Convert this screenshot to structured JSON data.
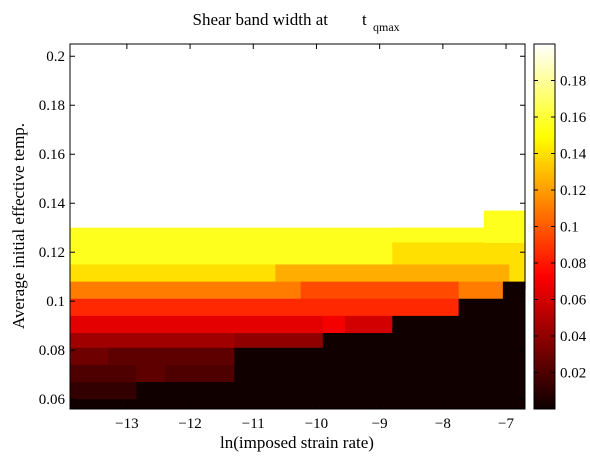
{
  "chart_data": {
    "type": "heatmap",
    "title": "Shear band width at",
    "title_symbol": "t",
    "title_subscript": "qmax",
    "xlabel": "ln(imposed strain rate)",
    "ylabel": "Average initial effective temp.",
    "xlim": [
      -13.9,
      -6.7
    ],
    "ylim": [
      0.056,
      0.205
    ],
    "xticks": [
      -13,
      -12,
      -11,
      -10,
      -9,
      -8,
      -7
    ],
    "xtick_labels": [
      "−13",
      "−12",
      "−11",
      "−10",
      "−9",
      "−8",
      "−7"
    ],
    "yticks": [
      0.06,
      0.08,
      0.1,
      0.12,
      0.14,
      0.16,
      0.18,
      0.2
    ],
    "ytick_labels": [
      "0.06",
      "0.08",
      "0.1",
      "0.12",
      "0.14",
      "0.16",
      "0.18",
      "0.2"
    ],
    "colorbar": {
      "colormap": "hot",
      "range": [
        0.0,
        0.2
      ],
      "ticks": [
        0.02,
        0.04,
        0.06,
        0.08,
        0.1,
        0.12,
        0.14,
        0.16,
        0.18
      ],
      "tick_labels": [
        "0.02",
        "0.04",
        "0.06",
        "0.08",
        "0.1",
        "0.12",
        "0.14",
        "0.16",
        "0.18"
      ]
    },
    "background_value": 0.2,
    "cells": [
      {
        "x0": -13.9,
        "x1": -7.35,
        "y0": 0.121,
        "y1": 0.13,
        "value": 0.155
      },
      {
        "x0": -7.35,
        "x1": -6.7,
        "y0": 0.13,
        "y1": 0.137,
        "value": 0.155
      },
      {
        "x0": -13.9,
        "x1": -8.8,
        "y0": 0.115,
        "y1": 0.121,
        "value": 0.155
      },
      {
        "x0": -8.8,
        "x1": -7.35,
        "y0": 0.121,
        "y1": 0.13,
        "value": 0.155
      },
      {
        "x0": -8.8,
        "x1": -6.7,
        "y0": 0.115,
        "y1": 0.124,
        "value": 0.14
      },
      {
        "x0": -7.35,
        "x1": -6.7,
        "y0": 0.124,
        "y1": 0.13,
        "value": 0.155
      },
      {
        "x0": -13.9,
        "x1": -10.65,
        "y0": 0.108,
        "y1": 0.115,
        "value": 0.14
      },
      {
        "x0": -10.65,
        "x1": -6.95,
        "y0": 0.108,
        "y1": 0.115,
        "value": 0.125
      },
      {
        "x0": -6.95,
        "x1": -6.7,
        "y0": 0.108,
        "y1": 0.115,
        "value": 0.14
      },
      {
        "x0": -13.9,
        "x1": -10.25,
        "y0": 0.101,
        "y1": 0.108,
        "value": 0.11
      },
      {
        "x0": -10.25,
        "x1": -7.75,
        "y0": 0.101,
        "y1": 0.108,
        "value": 0.095
      },
      {
        "x0": -7.75,
        "x1": -7.05,
        "y0": 0.101,
        "y1": 0.108,
        "value": 0.11
      },
      {
        "x0": -7.05,
        "x1": -6.7,
        "y0": 0.105,
        "y1": 0.108,
        "value": 0.002
      },
      {
        "x0": -13.9,
        "x1": -7.75,
        "y0": 0.094,
        "y1": 0.101,
        "value": 0.085
      },
      {
        "x0": -13.9,
        "x1": -9.9,
        "y0": 0.087,
        "y1": 0.094,
        "value": 0.065
      },
      {
        "x0": -9.9,
        "x1": -9.55,
        "y0": 0.087,
        "y1": 0.094,
        "value": 0.07
      },
      {
        "x0": -9.55,
        "x1": -8.8,
        "y0": 0.087,
        "y1": 0.094,
        "value": 0.06
      },
      {
        "x0": -13.9,
        "x1": -11.3,
        "y0": 0.081,
        "y1": 0.087,
        "value": 0.045
      },
      {
        "x0": -11.3,
        "x1": -9.9,
        "y0": 0.081,
        "y1": 0.087,
        "value": 0.04
      },
      {
        "x0": -13.9,
        "x1": -13.3,
        "y0": 0.074,
        "y1": 0.081,
        "value": 0.03
      },
      {
        "x0": -13.3,
        "x1": -11.3,
        "y0": 0.074,
        "y1": 0.081,
        "value": 0.025
      },
      {
        "x0": -13.9,
        "x1": -12.85,
        "y0": 0.067,
        "y1": 0.074,
        "value": 0.02
      },
      {
        "x0": -12.85,
        "x1": -12.4,
        "y0": 0.067,
        "y1": 0.074,
        "value": 0.025
      },
      {
        "x0": -12.4,
        "x1": -11.3,
        "y0": 0.067,
        "y1": 0.074,
        "value": 0.02
      },
      {
        "x0": -13.9,
        "x1": -12.85,
        "y0": 0.06,
        "y1": 0.067,
        "value": 0.012
      }
    ],
    "low_region_value": 0.002,
    "low_region_boundary": [
      [
        -13.9,
        0.06
      ],
      [
        -12.85,
        0.06
      ],
      [
        -12.85,
        0.067
      ],
      [
        -11.3,
        0.067
      ],
      [
        -11.3,
        0.081
      ],
      [
        -9.9,
        0.081
      ],
      [
        -9.9,
        0.087
      ],
      [
        -8.8,
        0.087
      ],
      [
        -8.8,
        0.094
      ],
      [
        -7.75,
        0.094
      ],
      [
        -7.75,
        0.101
      ],
      [
        -7.05,
        0.101
      ],
      [
        -7.05,
        0.105
      ],
      [
        -6.7,
        0.105
      ]
    ]
  }
}
